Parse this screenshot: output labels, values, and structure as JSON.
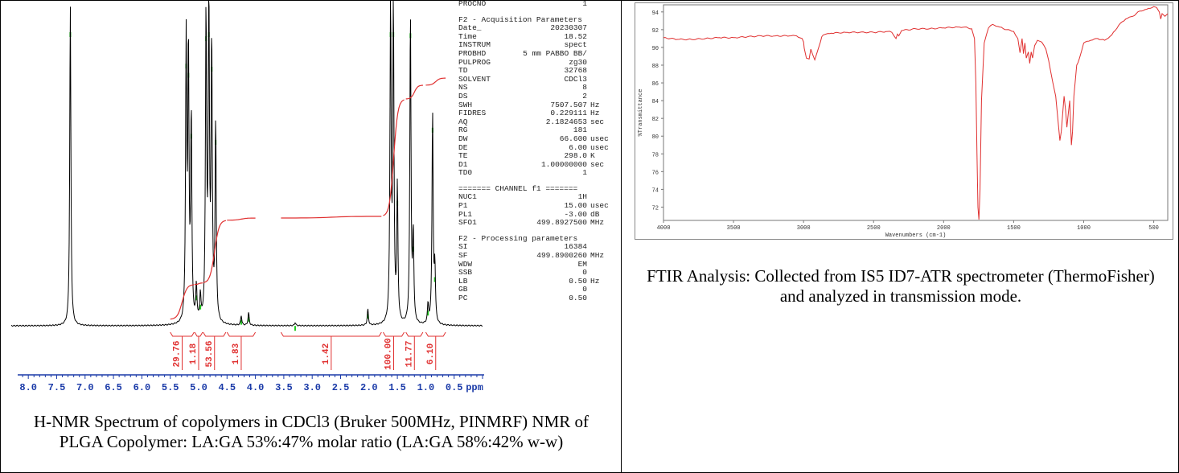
{
  "nmr": {
    "caption": "H-NMR Spectrum of copolymers in CDCl3 (Bruker 500MHz, PINMRF) NMR of PLGA Copolymer: LA:GA 53%:47% molar ratio (LA:GA 58%:42% w-w)",
    "params_top": [
      {
        "key": "PROCNO",
        "value": "1",
        "unit": ""
      }
    ],
    "params_head1": "F2 - Acquisition Parameters",
    "params1": [
      {
        "key": "Date_",
        "value": "20230307",
        "unit": ""
      },
      {
        "key": "Time",
        "value": "18.52",
        "unit": ""
      },
      {
        "key": "INSTRUM",
        "value": "spect",
        "unit": ""
      },
      {
        "key": "PROBHD",
        "value": "5 mm PABBO BB/",
        "unit": ""
      },
      {
        "key": "PULPROG",
        "value": "zg30",
        "unit": ""
      },
      {
        "key": "TD",
        "value": "32768",
        "unit": ""
      },
      {
        "key": "SOLVENT",
        "value": "CDCl3",
        "unit": ""
      },
      {
        "key": "NS",
        "value": "8",
        "unit": ""
      },
      {
        "key": "DS",
        "value": "2",
        "unit": ""
      },
      {
        "key": "SWH",
        "value": "7507.507",
        "unit": "Hz"
      },
      {
        "key": "FIDRES",
        "value": "0.229111",
        "unit": "Hz"
      },
      {
        "key": "AQ",
        "value": "2.1824653",
        "unit": "sec"
      },
      {
        "key": "RG",
        "value": "181",
        "unit": ""
      },
      {
        "key": "DW",
        "value": "66.600",
        "unit": "usec"
      },
      {
        "key": "DE",
        "value": "6.00",
        "unit": "usec"
      },
      {
        "key": "TE",
        "value": "298.0",
        "unit": "K"
      },
      {
        "key": "D1",
        "value": "1.00000000",
        "unit": "sec"
      },
      {
        "key": "TD0",
        "value": "1",
        "unit": ""
      }
    ],
    "params_head2": "======= CHANNEL f1 =======",
    "params2": [
      {
        "key": "NUC1",
        "value": "1H",
        "unit": ""
      },
      {
        "key": "P1",
        "value": "15.00",
        "unit": "usec"
      },
      {
        "key": "PL1",
        "value": "-3.00",
        "unit": "dB"
      },
      {
        "key": "SFO1",
        "value": "499.8927500",
        "unit": "MHz"
      }
    ],
    "params_head3": "F2 - Processing parameters",
    "params3": [
      {
        "key": "SI",
        "value": "16384",
        "unit": ""
      },
      {
        "key": "SF",
        "value": "499.8900260",
        "unit": "MHz"
      },
      {
        "key": "WDW",
        "value": "EM",
        "unit": ""
      },
      {
        "key": "SSB",
        "value": "0",
        "unit": ""
      },
      {
        "key": "LB",
        "value": "0.50",
        "unit": "Hz"
      },
      {
        "key": "GB",
        "value": "0",
        "unit": ""
      },
      {
        "key": "PC",
        "value": "0.50",
        "unit": ""
      }
    ]
  },
  "ftir": {
    "caption": "FTIR Analysis: Collected from IS5 ID7-ATR spectrometer (ThermoFisher) and analyzed in transmission mode."
  },
  "chart_data": [
    {
      "type": "line",
      "name_of_figure": "nmr",
      "xlabel": "ppm",
      "xlim": [
        8.3,
        0.0
      ],
      "x_reversed": true,
      "x_ticks": [
        "8.0",
        "7.5",
        "7.0",
        "6.5",
        "6.0",
        "5.5",
        "5.0",
        "4.5",
        "4.0",
        "3.5",
        "3.0",
        "2.5",
        "2.0",
        "1.5",
        "1.0",
        "0.5"
      ],
      "peaks": [
        {
          "ppm": 7.26,
          "height": 1.0
        },
        {
          "ppm": 5.22,
          "height": 0.87
        },
        {
          "ppm": 5.18,
          "height": 0.84
        },
        {
          "ppm": 5.13,
          "height": 0.64
        },
        {
          "ppm": 5.04,
          "height": 0.11
        },
        {
          "ppm": 4.97,
          "height": 0.08
        },
        {
          "ppm": 4.87,
          "height": 0.96
        },
        {
          "ppm": 4.82,
          "height": 1.0
        },
        {
          "ppm": 4.77,
          "height": 0.86
        },
        {
          "ppm": 4.7,
          "height": 0.62
        },
        {
          "ppm": 4.25,
          "height": 0.03
        },
        {
          "ppm": 4.12,
          "height": 0.04
        },
        {
          "ppm": 3.3,
          "height": 0.01
        },
        {
          "ppm": 2.02,
          "height": 0.05
        },
        {
          "ppm": 1.62,
          "height": 1.0
        },
        {
          "ppm": 1.57,
          "height": 0.98
        },
        {
          "ppm": 1.5,
          "height": 0.42
        },
        {
          "ppm": 1.27,
          "height": 0.97
        },
        {
          "ppm": 1.22,
          "height": 0.27
        },
        {
          "ppm": 0.96,
          "height": 0.06
        },
        {
          "ppm": 0.88,
          "height": 0.66
        },
        {
          "ppm": 0.84,
          "height": 0.17
        }
      ],
      "integrals": [
        {
          "label": "29.76",
          "from": 5.5,
          "to": 5.08
        },
        {
          "label": "1.18",
          "from": 5.07,
          "to": 4.93
        },
        {
          "label": "53.56",
          "from": 4.92,
          "to": 4.52
        },
        {
          "label": "1.83",
          "from": 4.5,
          "to": 4.0
        },
        {
          "label": "1.42",
          "from": 3.55,
          "to": 1.78
        },
        {
          "label": "100.00",
          "from": 1.75,
          "to": 1.38
        },
        {
          "label": "11.77",
          "from": 1.35,
          "to": 1.05
        },
        {
          "label": "6.10",
          "from": 1.0,
          "to": 0.65
        }
      ]
    },
    {
      "type": "line",
      "name_of_figure": "ftir",
      "xlabel": "Wavenumbers (cm-1)",
      "ylabel": "%Transmittance",
      "xlim": [
        4000,
        400
      ],
      "x_reversed": true,
      "ylim": [
        70.5,
        94.8
      ],
      "x_ticks": [
        4000,
        3500,
        3000,
        2500,
        2000,
        1500,
        1000,
        500
      ],
      "y_ticks": [
        72,
        74,
        76,
        78,
        80,
        82,
        84,
        86,
        88,
        90,
        92,
        94
      ],
      "color": "#e03030",
      "series": [
        {
          "x": [
            4000,
            3900,
            3800,
            3700,
            3600,
            3500,
            3400,
            3300,
            3200,
            3100,
            3050,
            3010,
            3000,
            2995,
            2980,
            2960,
            2948,
            2935,
            2920,
            2900,
            2880,
            2870,
            2860,
            2840,
            2800,
            2700,
            2600,
            2500,
            2400,
            2370,
            2350,
            2340,
            2330,
            2320,
            2300,
            2200,
            2100,
            2000,
            1900,
            1850,
            1800,
            1780,
            1770,
            1762,
            1755,
            1748,
            1740,
            1730,
            1710,
            1680,
            1650,
            1600,
            1550,
            1500,
            1470,
            1455,
            1440,
            1430,
            1420,
            1410,
            1395,
            1385,
            1375,
            1365,
            1350,
            1340,
            1330,
            1300,
            1270,
            1250,
            1220,
            1200,
            1185,
            1170,
            1160,
            1140,
            1130,
            1120,
            1110,
            1100,
            1088,
            1080,
            1070,
            1050,
            1040,
            1030,
            1000,
            950,
            900,
            850,
            800,
            750,
            700,
            650,
            600,
            550,
            500,
            480,
            460,
            450,
            440,
            420,
            400
          ],
          "y": [
            91.1,
            90.9,
            90.9,
            91.0,
            91.1,
            91.1,
            91.2,
            91.3,
            91.3,
            91.3,
            91.3,
            91.0,
            90.6,
            89.9,
            88.8,
            88.7,
            89.8,
            89.2,
            88.6,
            89.6,
            90.6,
            91.2,
            91.4,
            91.5,
            91.6,
            91.7,
            91.7,
            91.7,
            91.8,
            91.7,
            91.2,
            91.0,
            91.5,
            91.3,
            91.9,
            92.1,
            92.1,
            92.2,
            92.3,
            92.3,
            92.1,
            91.0,
            86.0,
            78.0,
            72.0,
            70.6,
            74.0,
            84.0,
            90.5,
            92.2,
            92.6,
            92.3,
            92.0,
            91.8,
            91.0,
            89.4,
            91.0,
            89.3,
            90.5,
            88.8,
            89.5,
            88.2,
            89.5,
            88.8,
            90.2,
            90.5,
            90.8,
            90.6,
            89.8,
            88.5,
            86.0,
            84.5,
            82.0,
            79.5,
            80.5,
            84.5,
            83.0,
            81.0,
            82.5,
            84.0,
            79.0,
            80.5,
            84.5,
            88.0,
            88.3,
            88.8,
            90.5,
            90.8,
            91.0,
            90.8,
            91.4,
            92.5,
            93.2,
            93.5,
            94.1,
            94.3,
            94.6,
            94.5,
            94.0,
            93.2,
            93.8,
            93.5,
            93.8
          ]
        }
      ]
    }
  ]
}
